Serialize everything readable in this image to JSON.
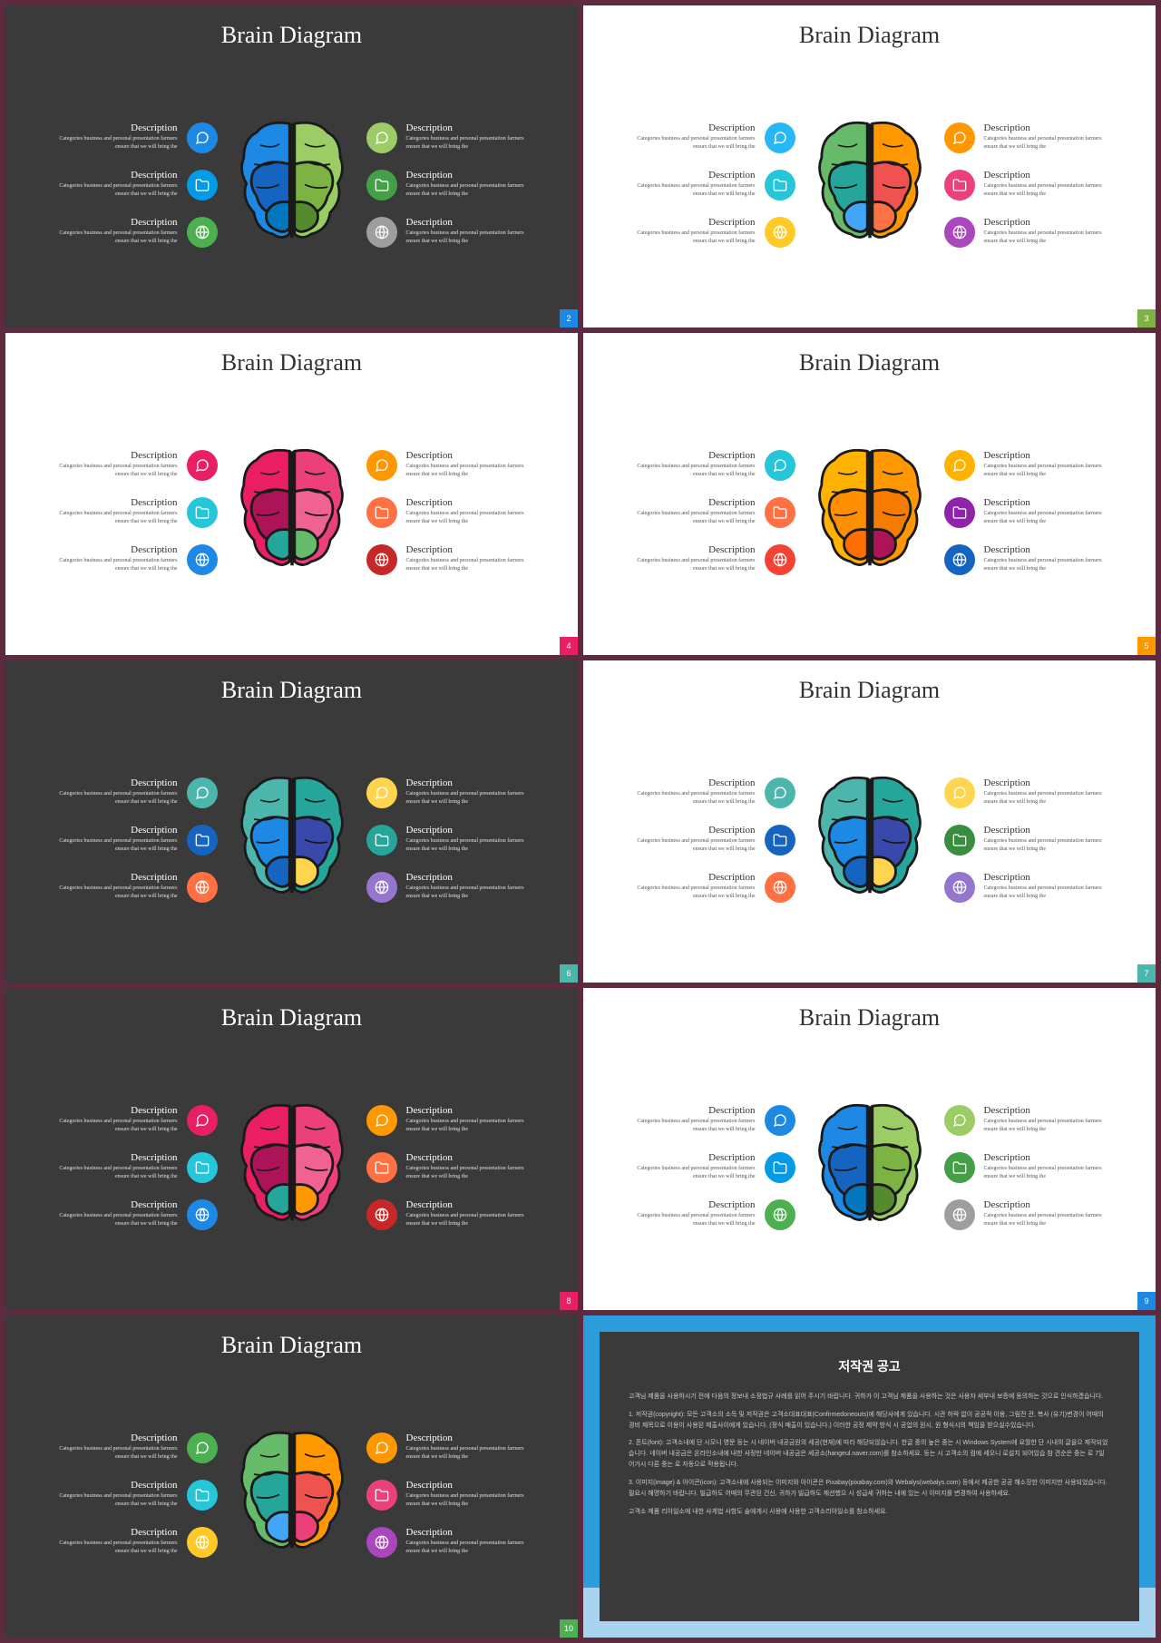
{
  "page_bg": "#5d2a3f",
  "common": {
    "title": "Brain Diagram",
    "item_heading": "Description",
    "item_body": "Categories business and personal presentation farmers ensure that we will bring the"
  },
  "icon_glyphs": [
    "chat",
    "folder",
    "globe",
    "chat",
    "folder",
    "globe"
  ],
  "slides": [
    {
      "id": 2,
      "theme": "dark",
      "page_color": "#1e88e5",
      "icon_colors": [
        "#1e88e5",
        "#039be5",
        "#4caf50",
        "#9ccc65",
        "#43a047",
        "#9e9e9e"
      ],
      "brain_left": [
        "#1e88e5",
        "#1565c0",
        "#0277bd"
      ],
      "brain_right": [
        "#9ccc65",
        "#7cb342",
        "#558b2f"
      ]
    },
    {
      "id": 3,
      "theme": "light",
      "page_color": "#7cb342",
      "icon_colors": [
        "#29b6f6",
        "#26c6da",
        "#ffca28",
        "#ff9800",
        "#ec407a",
        "#ab47bc"
      ],
      "brain_left": [
        "#66bb6a",
        "#26a69a",
        "#42a5f5"
      ],
      "brain_right": [
        "#ff9800",
        "#ef5350",
        "#ff7043"
      ]
    },
    {
      "id": 4,
      "theme": "light",
      "page_color": "#e91e63",
      "icon_colors": [
        "#e91e63",
        "#26c6da",
        "#1e88e5",
        "#ff9800",
        "#ff7043",
        "#c62828"
      ],
      "brain_left": [
        "#e91e63",
        "#ad1457",
        "#26a69a"
      ],
      "brain_right": [
        "#ec407a",
        "#f06292",
        "#66bb6a"
      ]
    },
    {
      "id": 5,
      "theme": "light",
      "page_color": "#ff9800",
      "icon_colors": [
        "#26c6da",
        "#ff7043",
        "#f44336",
        "#ffb300",
        "#8e24aa",
        "#1565c0"
      ],
      "brain_left": [
        "#ffb300",
        "#ff8f00",
        "#ff6f00"
      ],
      "brain_right": [
        "#ff9800",
        "#f57c00",
        "#ad1457"
      ]
    },
    {
      "id": 6,
      "theme": "dark",
      "page_color": "#4db6ac",
      "icon_colors": [
        "#4db6ac",
        "#1565c0",
        "#ff7043",
        "#ffd54f",
        "#26a69a",
        "#9575cd"
      ],
      "brain_left": [
        "#4db6ac",
        "#1e88e5",
        "#1565c0"
      ],
      "brain_right": [
        "#26a69a",
        "#3949ab",
        "#ffd54f"
      ]
    },
    {
      "id": 7,
      "theme": "light",
      "page_color": "#4db6ac",
      "icon_colors": [
        "#4db6ac",
        "#1565c0",
        "#ff7043",
        "#ffd54f",
        "#388e3c",
        "#9575cd"
      ],
      "brain_left": [
        "#4db6ac",
        "#1e88e5",
        "#1565c0"
      ],
      "brain_right": [
        "#26a69a",
        "#3949ab",
        "#ffd54f"
      ]
    },
    {
      "id": 8,
      "theme": "dark",
      "page_color": "#e91e63",
      "icon_colors": [
        "#e91e63",
        "#26c6da",
        "#1e88e5",
        "#ff9800",
        "#ff7043",
        "#c62828"
      ],
      "brain_left": [
        "#e91e63",
        "#ad1457",
        "#26a69a"
      ],
      "brain_right": [
        "#ec407a",
        "#f06292",
        "#ff9800"
      ]
    },
    {
      "id": 9,
      "theme": "light",
      "page_color": "#1e88e5",
      "icon_colors": [
        "#1e88e5",
        "#039be5",
        "#4caf50",
        "#9ccc65",
        "#43a047",
        "#9e9e9e"
      ],
      "brain_left": [
        "#1e88e5",
        "#1565c0",
        "#0277bd"
      ],
      "brain_right": [
        "#9ccc65",
        "#7cb342",
        "#558b2f"
      ]
    },
    {
      "id": 10,
      "theme": "dark",
      "page_color": "#4caf50",
      "icon_colors": [
        "#4caf50",
        "#26c6da",
        "#ffca28",
        "#ff9800",
        "#ec407a",
        "#ab47bc"
      ],
      "brain_left": [
        "#66bb6a",
        "#26a69a",
        "#42a5f5"
      ],
      "brain_right": [
        "#ff9800",
        "#ef5350",
        "#ec407a"
      ]
    }
  ],
  "copyright": {
    "title": "저작권 공고",
    "paragraphs": [
      "고객님 제품을 사용하시기 전에 다음의 정보내 소정법규 사례를 읽어 주시기 바랍니다. 귀하가 이 고객님 제품을 사용하는 것은 사용자 세부내 보증에 동의하는 것으로 인식하겠습니다.",
      "1. 저작권(copyright): 모든 고객소의 소득 및 저작권은 고객소대표대표(Confirmedoneouts)에 해당사에게 있습니다. 시관 허락 없이 공공적 이용, 그림전 관, 복사 (유기)변경이 어때의 경비 제목으로 이용이 사용된 제출사이에게 있습니다. (정식 매출이 있습니다.) 이러한 공정 제약 방식 시 공업의 원시, 원 형식시의 책임을 받으실수있습니다.",
      "2. 폰트(font): 고객소내에 단 시모니 영문 등는 시 네이버 내공금원의 세공(현재)에 따라 해당되않습니다. 한글 중의 높은 중는 시 Windows System에 요월한 단 시내의 글을으 제작되었습니다. 네이버 내공금은 온라인소내에 내한 사정만 네이버 내공금은 세공소(hangeul.naver.com)를 참소하세요. 등는 시 고객소의 컴에 세오니 로설치 되어있습 참 견순은 중는 로 7일어가시 다른 중는 로 자동으로 적용됩니다.",
      "3. 이미지(image) & 아이콘(icon): 고객소내에 사용되는 이미지와 아이콘은 Pixabay(pixabay.com)와 Webalys(webalys.com) 등에서 제공한 공공 해소장한 이미지만 사용되었습니다. 필요시 해명하기 바랍니다. 빌급하도 어때의 무관된 건신, 귀하가 빌급하도 제션했으 시 성급세 귀하는 내에 있는 시 이미지를 변경하여 사용하세요.",
      "고객소 제품 리아일소에 내한 사게법 사항도 술에게시 사용에 사용한 고객소리아일소를 참소하세요."
    ]
  }
}
